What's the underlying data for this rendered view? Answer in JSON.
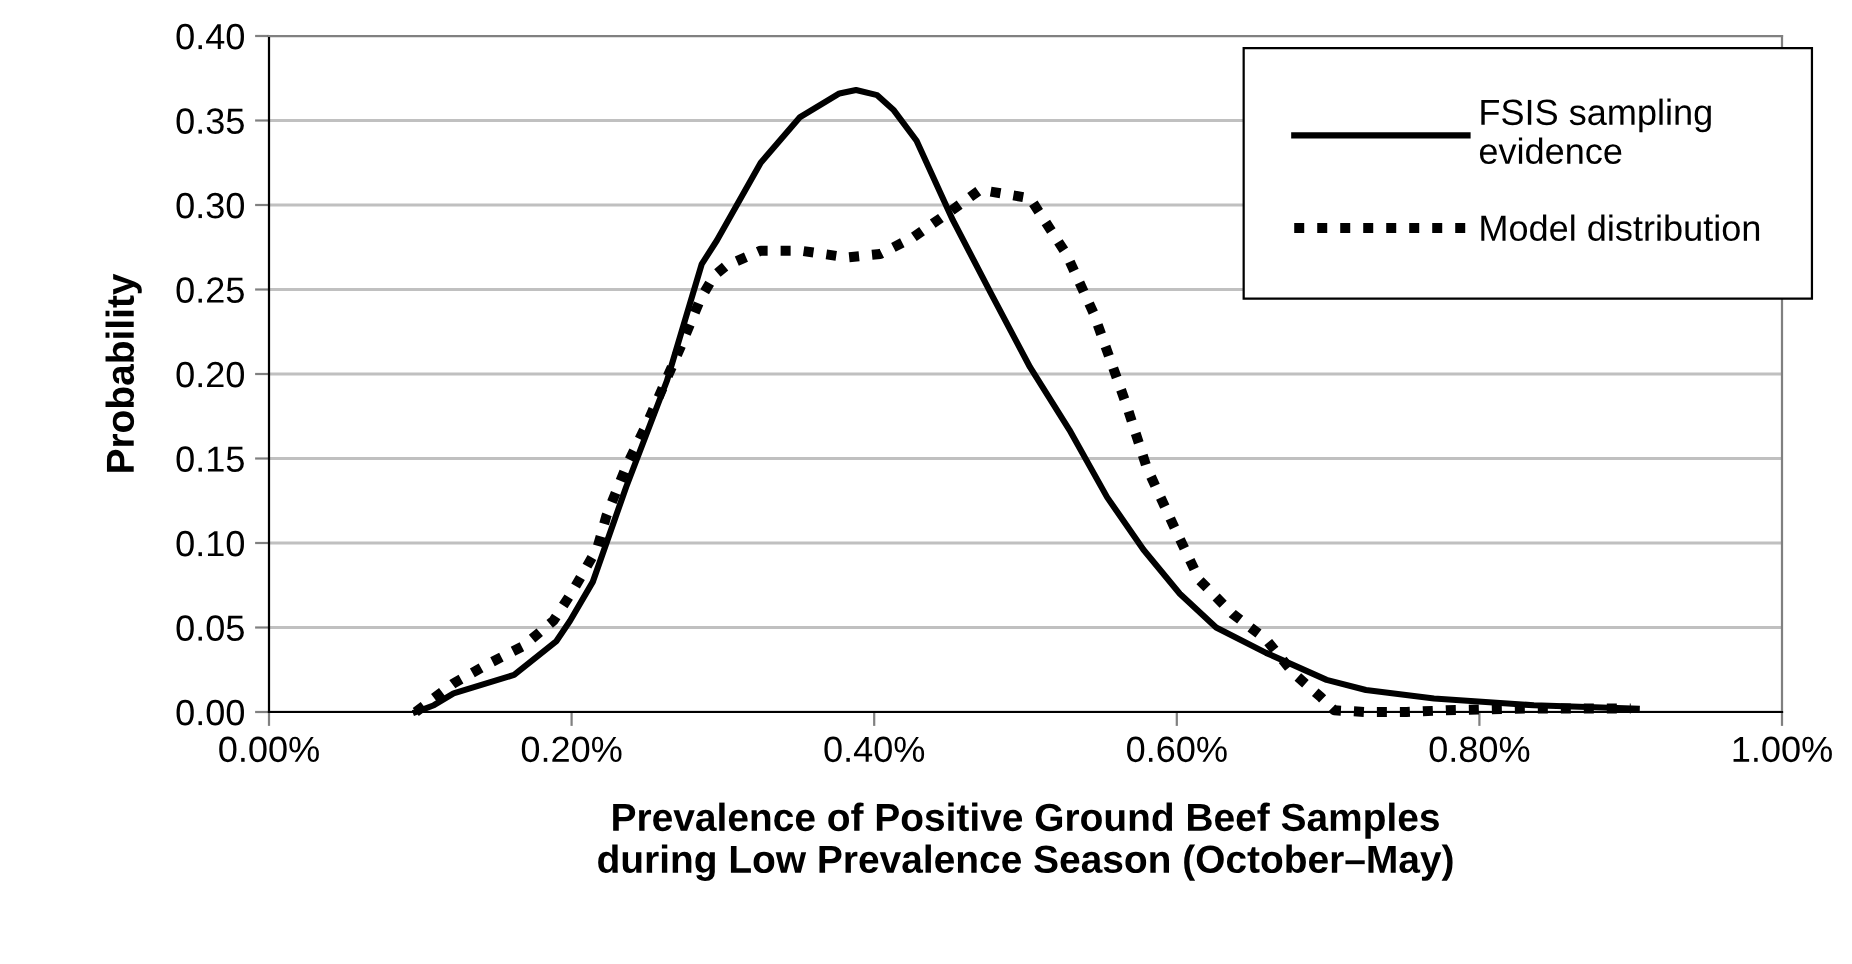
{
  "chart_data": {
    "type": "line",
    "xlabel": "Prevalence of Positive Ground Beef Samples\nduring Low Prevalence Season (October–May)",
    "ylabel": "Probability",
    "xlim": [
      0,
      1.0
    ],
    "xticks": [
      {
        "value": 0,
        "label": "0.00%"
      },
      {
        "value": 0.2,
        "label": "0.20%"
      },
      {
        "value": 0.4,
        "label": "0.40%"
      },
      {
        "value": 0.6,
        "label": "0.60%"
      },
      {
        "value": 0.8,
        "label": "0.80%"
      },
      {
        "value": 1.0,
        "label": "1.00%"
      }
    ],
    "ylim": [
      0,
      0.4
    ],
    "yticks": [
      {
        "value": 0,
        "label": "0.00"
      },
      {
        "value": 0.05,
        "label": "0.05"
      },
      {
        "value": 0.1,
        "label": "0.10"
      },
      {
        "value": 0.15,
        "label": "0.15"
      },
      {
        "value": 0.2,
        "label": "0.20"
      },
      {
        "value": 0.25,
        "label": "0.25"
      },
      {
        "value": 0.3,
        "label": "0.30"
      },
      {
        "value": 0.35,
        "label": "0.35"
      },
      {
        "value": 0.4,
        "label": "0.40"
      }
    ],
    "grid": "y",
    "legend": "top right",
    "series": [
      {
        "name": "FSIS sampling\nevidence",
        "color": "#000000",
        "line_style": "solid",
        "x": [
          0.097,
          0.109,
          0.122,
          0.162,
          0.19,
          0.199,
          0.214,
          0.236,
          0.263,
          0.286,
          0.296,
          0.325,
          0.351,
          0.377,
          0.388,
          0.402,
          0.413,
          0.428,
          0.452,
          0.477,
          0.503,
          0.529,
          0.554,
          0.578,
          0.602,
          0.626,
          0.659,
          0.699,
          0.725,
          0.77,
          0.836,
          0.904
        ],
        "values": [
          0.0,
          0.004,
          0.011,
          0.022,
          0.042,
          0.054,
          0.077,
          0.133,
          0.196,
          0.265,
          0.279,
          0.325,
          0.352,
          0.366,
          0.368,
          0.365,
          0.356,
          0.338,
          0.291,
          0.248,
          0.204,
          0.167,
          0.127,
          0.096,
          0.07,
          0.05,
          0.035,
          0.019,
          0.013,
          0.008,
          0.004,
          0.002
        ]
      },
      {
        "name": "Model distribution",
        "color": "#000000",
        "line_style": "dotted",
        "x": [
          0.097,
          0.122,
          0.146,
          0.168,
          0.188,
          0.201,
          0.217,
          0.223,
          0.236,
          0.25,
          0.272,
          0.285,
          0.294,
          0.302,
          0.325,
          0.351,
          0.382,
          0.404,
          0.426,
          0.45,
          0.47,
          0.503,
          0.527,
          0.545,
          0.567,
          0.58,
          0.598,
          0.615,
          0.637,
          0.659,
          0.677,
          0.695,
          0.704,
          0.725,
          0.752,
          0.778,
          0.83,
          0.9
        ],
        "values": [
          0.0,
          0.017,
          0.029,
          0.039,
          0.054,
          0.072,
          0.097,
          0.116,
          0.145,
          0.171,
          0.216,
          0.244,
          0.258,
          0.264,
          0.273,
          0.273,
          0.269,
          0.271,
          0.281,
          0.296,
          0.309,
          0.304,
          0.271,
          0.236,
          0.181,
          0.145,
          0.11,
          0.078,
          0.058,
          0.043,
          0.023,
          0.009,
          0.001,
          0.0,
          0.0,
          0.001,
          0.002,
          0.002
        ]
      }
    ]
  }
}
